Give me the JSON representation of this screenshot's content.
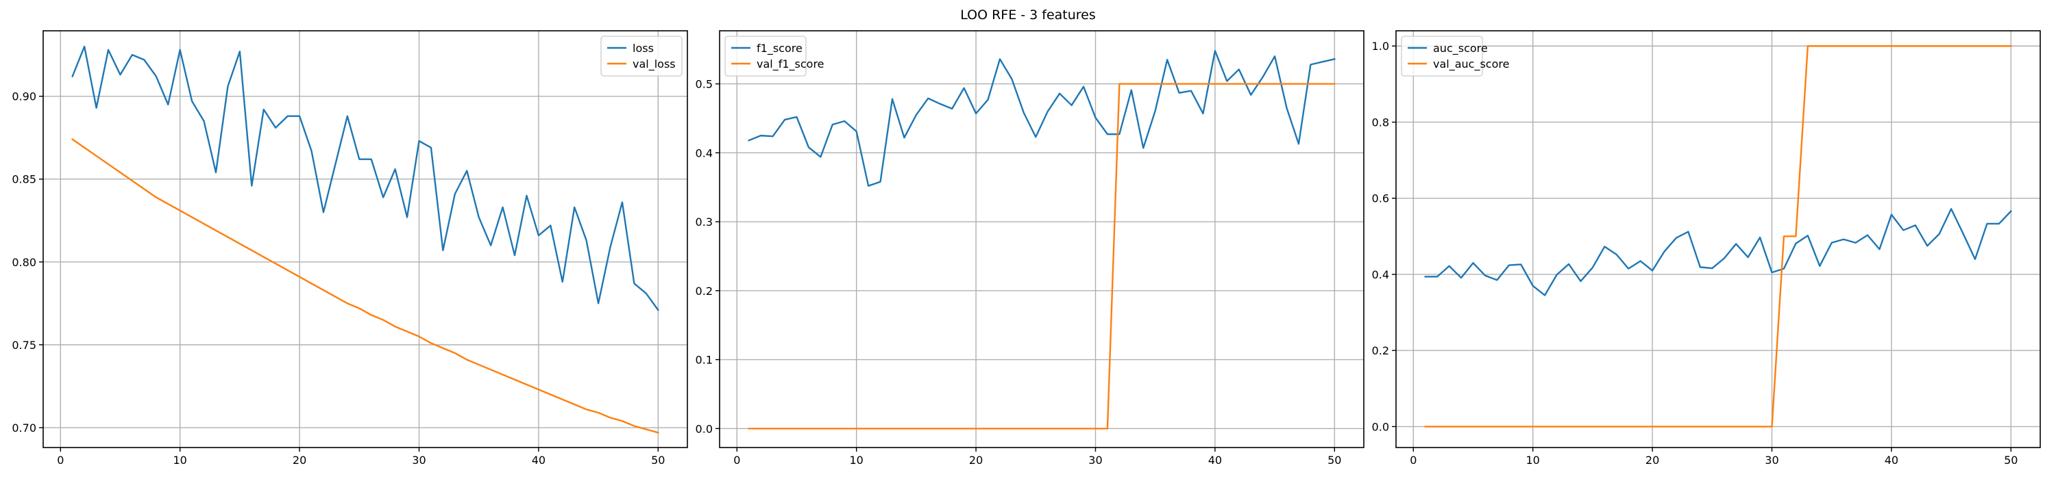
{
  "figure": {
    "suptitle": "LOO RFE - 3 features"
  },
  "colors": {
    "c0": "#1f77b4",
    "c1": "#ff7f0e"
  },
  "chart_data": [
    {
      "type": "line",
      "grid": true,
      "legend": "upper right",
      "xlim": [
        -1.45,
        52.45
      ],
      "ylim": [
        0.688,
        0.9395
      ],
      "xticks": [
        0,
        10,
        20,
        30,
        40,
        50
      ],
      "yticks": [
        0.7,
        0.75,
        0.8,
        0.85,
        0.9
      ],
      "yformat": 2,
      "x": [
        1,
        2,
        3,
        4,
        5,
        6,
        7,
        8,
        9,
        10,
        11,
        12,
        13,
        14,
        15,
        16,
        17,
        18,
        19,
        20,
        21,
        22,
        23,
        24,
        25,
        26,
        27,
        28,
        29,
        30,
        31,
        32,
        33,
        34,
        35,
        36,
        37,
        38,
        39,
        40,
        41,
        42,
        43,
        44,
        45,
        46,
        47,
        48,
        49,
        50
      ],
      "series": [
        {
          "name": "loss",
          "values": [
            0.912,
            0.93,
            0.893,
            0.928,
            0.913,
            0.925,
            0.922,
            0.912,
            0.895,
            0.928,
            0.897,
            0.885,
            0.854,
            0.906,
            0.927,
            0.846,
            0.892,
            0.881,
            0.888,
            0.888,
            0.867,
            0.83,
            0.859,
            0.888,
            0.862,
            0.862,
            0.839,
            0.856,
            0.827,
            0.873,
            0.869,
            0.807,
            0.841,
            0.855,
            0.827,
            0.81,
            0.833,
            0.804,
            0.84,
            0.816,
            0.822,
            0.788,
            0.833,
            0.813,
            0.775,
            0.809,
            0.836,
            0.787,
            0.781,
            0.771
          ]
        },
        {
          "name": "val_loss",
          "values": [
            0.874,
            0.869,
            0.864,
            0.859,
            0.854,
            0.849,
            0.844,
            0.839,
            0.835,
            0.831,
            0.827,
            0.823,
            0.819,
            0.815,
            0.811,
            0.807,
            0.803,
            0.799,
            0.795,
            0.791,
            0.787,
            0.783,
            0.779,
            0.775,
            0.772,
            0.768,
            0.765,
            0.761,
            0.758,
            0.755,
            0.751,
            0.748,
            0.745,
            0.741,
            0.738,
            0.735,
            0.732,
            0.729,
            0.726,
            0.723,
            0.72,
            0.717,
            0.714,
            0.711,
            0.709,
            0.706,
            0.704,
            0.701,
            0.699,
            0.697
          ]
        }
      ]
    },
    {
      "type": "line",
      "grid": true,
      "legend": "upper left",
      "xlim": [
        -1.45,
        52.45
      ],
      "ylim": [
        -0.0275,
        0.577
      ],
      "xticks": [
        0,
        10,
        20,
        30,
        40,
        50
      ],
      "yticks": [
        0.0,
        0.1,
        0.2,
        0.3,
        0.4,
        0.5
      ],
      "yformat": 1,
      "x": [
        1,
        2,
        3,
        4,
        5,
        6,
        7,
        8,
        9,
        10,
        11,
        12,
        13,
        14,
        15,
        16,
        17,
        18,
        19,
        20,
        21,
        22,
        23,
        24,
        25,
        26,
        27,
        28,
        29,
        30,
        31,
        32,
        33,
        34,
        35,
        36,
        37,
        38,
        39,
        40,
        41,
        42,
        43,
        44,
        45,
        46,
        47,
        48,
        49,
        50
      ],
      "series": [
        {
          "name": "f1_score",
          "values": [
            0.418,
            0.425,
            0.424,
            0.448,
            0.452,
            0.408,
            0.394,
            0.441,
            0.446,
            0.431,
            0.352,
            0.358,
            0.478,
            0.422,
            0.455,
            0.479,
            0.471,
            0.464,
            0.494,
            0.457,
            0.477,
            0.536,
            0.507,
            0.458,
            0.423,
            0.46,
            0.486,
            0.469,
            0.496,
            0.451,
            0.427,
            0.427,
            0.491,
            0.407,
            0.461,
            0.535,
            0.487,
            0.49,
            0.457,
            0.548,
            0.504,
            0.521,
            0.484,
            0.51,
            0.54,
            0.465,
            0.413,
            0.528,
            0.532,
            0.536
          ]
        },
        {
          "name": "val_f1_score",
          "values": [
            0,
            0,
            0,
            0,
            0,
            0,
            0,
            0,
            0,
            0,
            0,
            0,
            0,
            0,
            0,
            0,
            0,
            0,
            0,
            0,
            0,
            0,
            0,
            0,
            0,
            0,
            0,
            0,
            0,
            0,
            0,
            0.5,
            0.5,
            0.5,
            0.5,
            0.5,
            0.5,
            0.5,
            0.5,
            0.5,
            0.5,
            0.5,
            0.5,
            0.5,
            0.5,
            0.5,
            0.5,
            0.5,
            0.5,
            0.5
          ]
        }
      ]
    },
    {
      "type": "line",
      "grid": true,
      "legend": "upper left",
      "xlim": [
        -1.45,
        52.45
      ],
      "ylim": [
        -0.055,
        1.04
      ],
      "xticks": [
        0,
        10,
        20,
        30,
        40,
        50
      ],
      "yticks": [
        0.0,
        0.2,
        0.4,
        0.6,
        0.8,
        1.0
      ],
      "yformat": 1,
      "x": [
        1,
        2,
        3,
        4,
        5,
        6,
        7,
        8,
        9,
        10,
        11,
        12,
        13,
        14,
        15,
        16,
        17,
        18,
        19,
        20,
        21,
        22,
        23,
        24,
        25,
        26,
        27,
        28,
        29,
        30,
        31,
        32,
        33,
        34,
        35,
        36,
        37,
        38,
        39,
        40,
        41,
        42,
        43,
        44,
        45,
        46,
        47,
        48,
        49,
        50
      ],
      "series": [
        {
          "name": "auc_score",
          "values": [
            0.394,
            0.394,
            0.422,
            0.391,
            0.43,
            0.397,
            0.385,
            0.424,
            0.426,
            0.37,
            0.345,
            0.399,
            0.427,
            0.382,
            0.418,
            0.473,
            0.452,
            0.415,
            0.435,
            0.41,
            0.46,
            0.496,
            0.512,
            0.419,
            0.416,
            0.442,
            0.48,
            0.445,
            0.497,
            0.405,
            0.415,
            0.481,
            0.502,
            0.422,
            0.483,
            0.492,
            0.483,
            0.503,
            0.466,
            0.557,
            0.516,
            0.529,
            0.475,
            0.506,
            0.572,
            0.507,
            0.44,
            0.533,
            0.533,
            0.566
          ]
        },
        {
          "name": "val_auc_score",
          "values": [
            0,
            0,
            0,
            0,
            0,
            0,
            0,
            0,
            0,
            0,
            0,
            0,
            0,
            0,
            0,
            0,
            0,
            0,
            0,
            0,
            0,
            0,
            0,
            0,
            0,
            0,
            0,
            0,
            0,
            0,
            0.5,
            0.5,
            1,
            1,
            1,
            1,
            1,
            1,
            1,
            1,
            1,
            1,
            1,
            1,
            1,
            1,
            1,
            1,
            1,
            1
          ]
        }
      ]
    }
  ]
}
